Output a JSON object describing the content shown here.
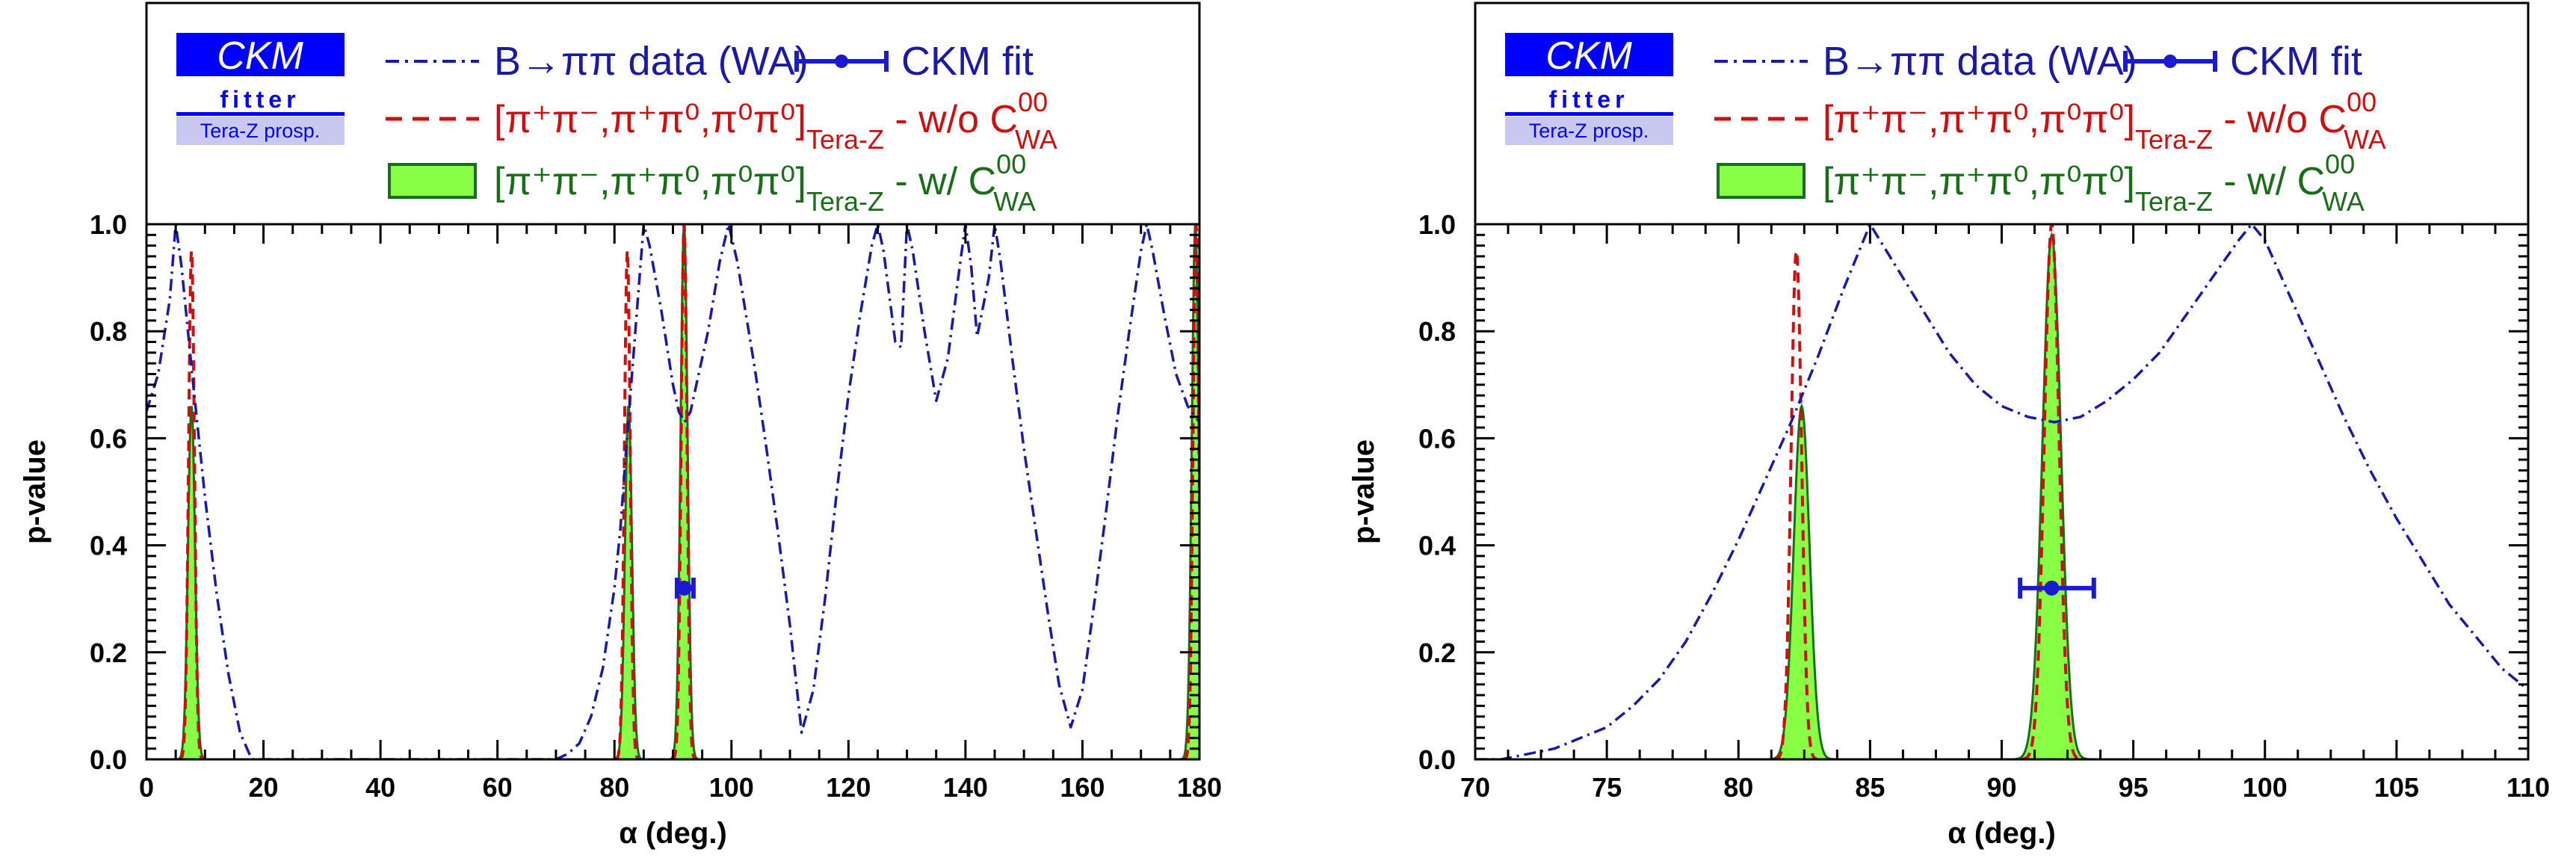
{
  "logo": {
    "line1": "CKM",
    "line2": "fitter",
    "line3": "Tera-Z prosp."
  },
  "legend": {
    "wa_label": "B→ππ data (WA)",
    "fit_label": "CKM fit",
    "red_label": "[π⁺π⁻,π⁺π⁰,π⁰π⁰]",
    "red_sub": "Tera-Z",
    "red_suffix": " - w/o C",
    "red_csup": "00",
    "red_csub": "WA",
    "green_label": "[π⁺π⁻,π⁺π⁰,π⁰π⁰]",
    "green_sub": "Tera-Z",
    "green_suffix": " - w/ C",
    "green_csup": "00",
    "green_csub": "WA"
  },
  "colors": {
    "wa": "#1a1aa6",
    "red": "#cc1010",
    "green_fill": "#88ff44",
    "green_line": "#1a6e1a",
    "fit": "#1a1ad0",
    "logo": "#0000ff"
  },
  "chart_data": [
    {
      "type": "line",
      "xlabel": "α (deg.)",
      "ylabel": "p-value",
      "xlim": [
        0,
        180
      ],
      "ylim": [
        0,
        1
      ],
      "xticks": [
        0,
        20,
        40,
        60,
        80,
        100,
        120,
        140,
        160,
        180
      ],
      "yticks": [
        0.0,
        0.2,
        0.4,
        0.6,
        0.8,
        1.0
      ],
      "series": [
        {
          "name": "B→ππ data (WA)",
          "style": "dash-dot",
          "x": [
            0,
            2,
            4,
            5,
            6,
            8,
            10,
            12,
            14,
            16,
            18,
            70,
            72,
            74,
            76,
            78,
            80,
            81,
            82,
            83,
            84,
            85,
            86,
            88,
            90,
            91,
            92,
            93,
            94,
            96,
            98,
            99.5,
            101,
            104,
            106,
            108,
            110,
            112,
            114,
            116,
            118,
            120,
            122,
            124,
            125,
            126,
            128,
            129,
            130,
            131,
            133,
            135,
            137,
            139,
            140,
            141,
            142,
            144,
            145,
            146,
            148,
            150,
            152,
            154,
            156,
            158,
            160,
            162,
            164,
            166,
            168,
            170,
            171,
            172,
            174,
            176,
            178,
            180
          ],
          "y": [
            0.65,
            0.72,
            0.86,
            1.0,
            0.92,
            0.7,
            0.49,
            0.31,
            0.16,
            0.05,
            0.0,
            0.0,
            0.01,
            0.03,
            0.08,
            0.17,
            0.32,
            0.43,
            0.58,
            0.72,
            0.86,
            1.0,
            0.96,
            0.84,
            0.7,
            0.65,
            0.63,
            0.65,
            0.7,
            0.8,
            0.93,
            1.0,
            0.93,
            0.73,
            0.58,
            0.42,
            0.25,
            0.05,
            0.13,
            0.3,
            0.5,
            0.68,
            0.83,
            0.96,
            1.0,
            0.95,
            0.78,
            0.77,
            1.0,
            0.95,
            0.8,
            0.67,
            0.75,
            0.92,
            1.0,
            0.92,
            0.79,
            0.9,
            1.0,
            0.93,
            0.75,
            0.58,
            0.43,
            0.28,
            0.14,
            0.06,
            0.13,
            0.29,
            0.46,
            0.64,
            0.8,
            0.95,
            1.0,
            0.95,
            0.83,
            0.72,
            0.66,
            0.63
          ]
        },
        {
          "name": "[π⁺π⁻,π⁺π⁰,π⁰π⁰] Tera-Z - w/o C00 WA",
          "style": "dashed",
          "peaks": [
            {
              "x": 7.7,
              "y": 0.95,
              "width": 0.5
            },
            {
              "x": 82.2,
              "y": 0.95,
              "width": 0.5
            },
            {
              "x": 91.9,
              "y": 1.0,
              "width": 0.5
            },
            {
              "x": 179.4,
              "y": 1.0,
              "width": 0.5
            }
          ]
        },
        {
          "name": "[π⁺π⁻,π⁺π⁰,π⁰π⁰] Tera-Z - w/ C00 WA",
          "style": "filled",
          "peaks": [
            {
              "x": 7.7,
              "y": 0.66,
              "width": 0.6
            },
            {
              "x": 82.4,
              "y": 0.66,
              "width": 0.6
            },
            {
              "x": 91.9,
              "y": 1.0,
              "width": 0.6
            },
            {
              "x": 179.3,
              "y": 1.0,
              "width": 0.6
            }
          ]
        }
      ],
      "fit_point": {
        "x": 91.9,
        "y": 0.32,
        "xerr_low": 1.2,
        "xerr_high": 1.6
      }
    },
    {
      "type": "line",
      "xlabel": "α (deg.)",
      "ylabel": "p-value",
      "xlim": [
        70,
        110
      ],
      "ylim": [
        0,
        1
      ],
      "xticks": [
        70,
        75,
        80,
        85,
        90,
        95,
        100,
        105,
        110
      ],
      "yticks": [
        0.0,
        0.2,
        0.4,
        0.6,
        0.8,
        1.0
      ],
      "series": [
        {
          "name": "B→ππ data (WA)",
          "style": "dash-dot",
          "x": [
            70,
            71,
            72,
            73,
            74,
            75,
            76,
            77,
            78,
            79,
            80,
            81,
            82,
            83,
            84,
            85,
            86,
            87,
            88,
            89,
            90,
            91,
            92,
            93,
            94,
            95,
            96,
            97,
            98,
            99,
            99.5,
            100,
            101,
            102,
            103,
            104,
            105,
            106,
            107,
            108,
            109,
            110
          ],
          "y": [
            0.0,
            0.0,
            0.01,
            0.02,
            0.04,
            0.06,
            0.1,
            0.15,
            0.22,
            0.31,
            0.41,
            0.52,
            0.63,
            0.75,
            0.88,
            1.0,
            0.92,
            0.84,
            0.76,
            0.7,
            0.66,
            0.64,
            0.63,
            0.64,
            0.67,
            0.71,
            0.76,
            0.83,
            0.9,
            0.97,
            1.0,
            0.97,
            0.86,
            0.75,
            0.64,
            0.54,
            0.45,
            0.37,
            0.29,
            0.23,
            0.17,
            0.13
          ]
        },
        {
          "name": "[π⁺π⁻,π⁺π⁰,π⁰π⁰] Tera-Z - w/o C00 WA",
          "style": "dashed",
          "peaks": [
            {
              "x": 82.2,
              "y": 0.95,
              "width": 0.2
            },
            {
              "x": 91.9,
              "y": 1.0,
              "width": 0.28
            }
          ]
        },
        {
          "name": "[π⁺π⁻,π⁺π⁰,π⁰π⁰] Tera-Z - w/ C00 WA",
          "style": "filled",
          "peaks": [
            {
              "x": 82.4,
              "y": 0.66,
              "width": 0.3
            },
            {
              "x": 91.9,
              "y": 0.98,
              "width": 0.35
            }
          ]
        }
      ],
      "fit_point": {
        "x": 91.9,
        "y": 0.32,
        "xerr_low": 1.2,
        "xerr_high": 1.6
      }
    }
  ]
}
